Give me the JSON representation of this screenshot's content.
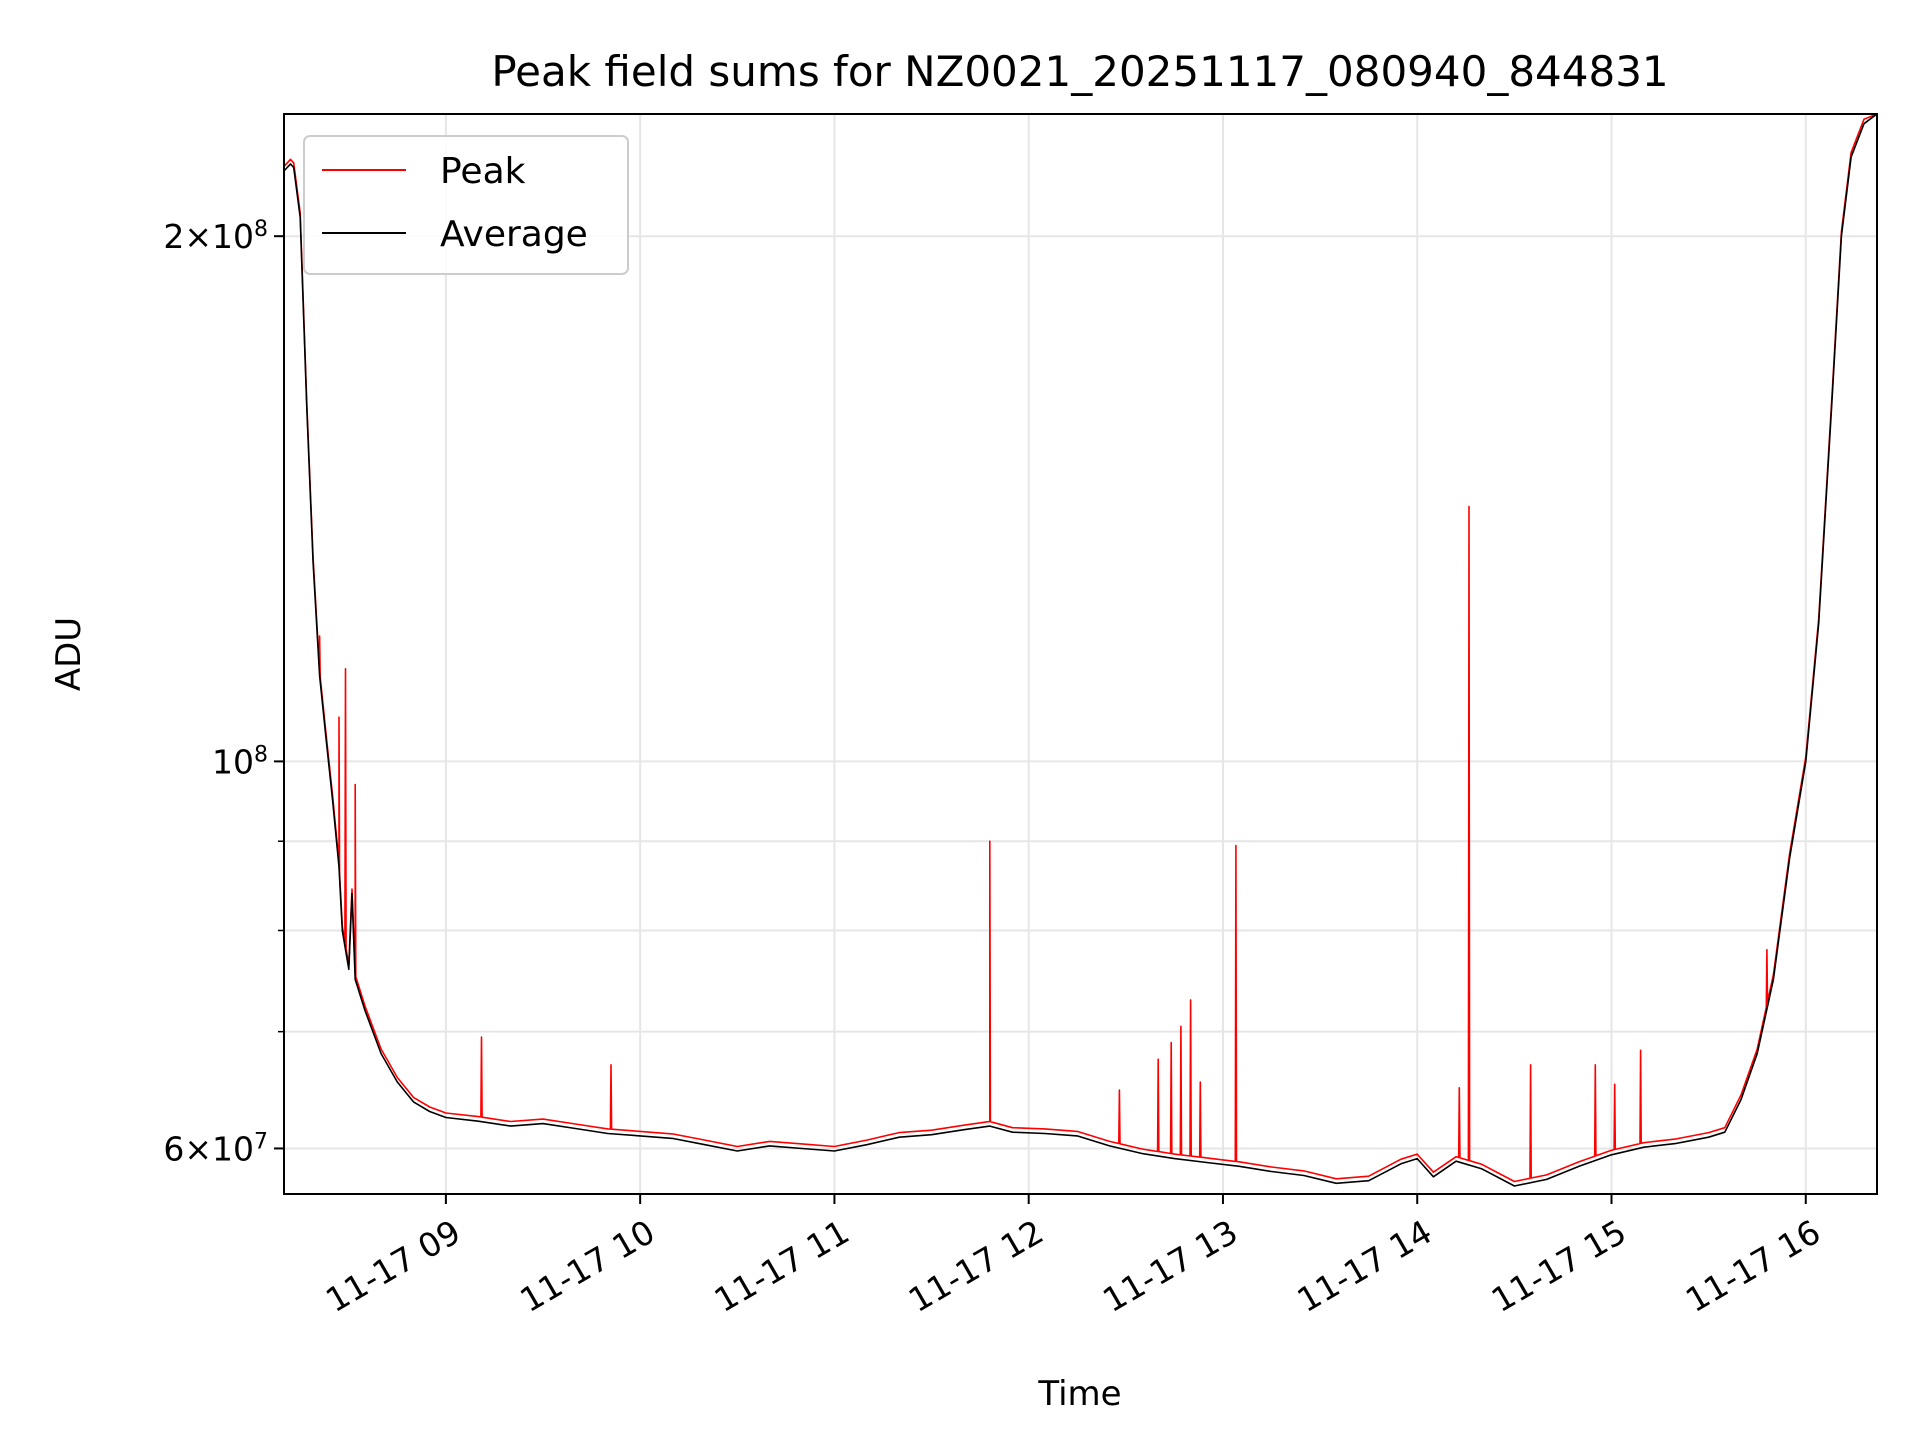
{
  "chart_data": {
    "type": "line",
    "title": "Peak field sums for NZ0021_20251117_080940_844831",
    "xlabel": "Time",
    "ylabel": "ADU",
    "y_scale": "log",
    "ylim": [
      56500000,
      235000000
    ],
    "xlim": [
      "2025-11-17 08:10",
      "2025-11-17 16:22"
    ],
    "grid": true,
    "legend_position": "top-left",
    "x_ticks": [
      {
        "value": "2025-11-17 09:00",
        "label": "11-17 09"
      },
      {
        "value": "2025-11-17 10:00",
        "label": "11-17 10"
      },
      {
        "value": "2025-11-17 11:00",
        "label": "11-17 11"
      },
      {
        "value": "2025-11-17 12:00",
        "label": "11-17 12"
      },
      {
        "value": "2025-11-17 13:00",
        "label": "11-17 13"
      },
      {
        "value": "2025-11-17 14:00",
        "label": "11-17 14"
      },
      {
        "value": "2025-11-17 15:00",
        "label": "11-17 15"
      },
      {
        "value": "2025-11-17 16:00",
        "label": "11-17 16"
      }
    ],
    "y_ticks_major": [
      {
        "value": 60000000,
        "label_base": "6×10",
        "label_exp": "7"
      },
      {
        "value": 100000000,
        "label_base": "10",
        "label_exp": "8"
      },
      {
        "value": 200000000,
        "label_base": "2×10",
        "label_exp": "8"
      }
    ],
    "y_ticks_minor": [
      70000000,
      80000000,
      90000000
    ],
    "series": [
      {
        "name": "Average",
        "color": "#000000",
        "points": [
          [
            "2025-11-17 08:10",
            218000000
          ],
          [
            "2025-11-17 08:12",
            220000000
          ],
          [
            "2025-11-17 08:13",
            219000000
          ],
          [
            "2025-11-17 08:15",
            205000000
          ],
          [
            "2025-11-17 08:17",
            160000000
          ],
          [
            "2025-11-17 08:19",
            130000000
          ],
          [
            "2025-11-17 08:21",
            112000000
          ],
          [
            "2025-11-17 08:23",
            103000000
          ],
          [
            "2025-11-17 08:25",
            95000000
          ],
          [
            "2025-11-17 08:27",
            87000000
          ],
          [
            "2025-11-17 08:28",
            80000000
          ],
          [
            "2025-11-17 08:30",
            76000000
          ],
          [
            "2025-11-17 08:31",
            84000000
          ],
          [
            "2025-11-17 08:32",
            75000000
          ],
          [
            "2025-11-17 08:35",
            72000000
          ],
          [
            "2025-11-17 08:40",
            68000000
          ],
          [
            "2025-11-17 08:45",
            65500000
          ],
          [
            "2025-11-17 08:50",
            63800000
          ],
          [
            "2025-11-17 08:55",
            63000000
          ],
          [
            "2025-11-17 09:00",
            62500000
          ],
          [
            "2025-11-17 09:10",
            62200000
          ],
          [
            "2025-11-17 09:20",
            61800000
          ],
          [
            "2025-11-17 09:30",
            62000000
          ],
          [
            "2025-11-17 09:40",
            61600000
          ],
          [
            "2025-11-17 09:50",
            61200000
          ],
          [
            "2025-11-17 10:00",
            61000000
          ],
          [
            "2025-11-17 10:10",
            60800000
          ],
          [
            "2025-11-17 10:20",
            60300000
          ],
          [
            "2025-11-17 10:30",
            59800000
          ],
          [
            "2025-11-17 10:40",
            60200000
          ],
          [
            "2025-11-17 10:50",
            60000000
          ],
          [
            "2025-11-17 11:00",
            59800000
          ],
          [
            "2025-11-17 11:10",
            60300000
          ],
          [
            "2025-11-17 11:20",
            60900000
          ],
          [
            "2025-11-17 11:30",
            61100000
          ],
          [
            "2025-11-17 11:40",
            61500000
          ],
          [
            "2025-11-17 11:48",
            61800000
          ],
          [
            "2025-11-17 11:55",
            61300000
          ],
          [
            "2025-11-17 12:05",
            61200000
          ],
          [
            "2025-11-17 12:15",
            61000000
          ],
          [
            "2025-11-17 12:25",
            60200000
          ],
          [
            "2025-11-17 12:35",
            59600000
          ],
          [
            "2025-11-17 12:45",
            59200000
          ],
          [
            "2025-11-17 12:55",
            58900000
          ],
          [
            "2025-11-17 13:05",
            58600000
          ],
          [
            "2025-11-17 13:15",
            58200000
          ],
          [
            "2025-11-17 13:25",
            57900000
          ],
          [
            "2025-11-17 13:35",
            57300000
          ],
          [
            "2025-11-17 13:45",
            57500000
          ],
          [
            "2025-11-17 13:55",
            58800000
          ],
          [
            "2025-11-17 14:00",
            59200000
          ],
          [
            "2025-11-17 14:05",
            57800000
          ],
          [
            "2025-11-17 14:12",
            59000000
          ],
          [
            "2025-11-17 14:20",
            58400000
          ],
          [
            "2025-11-17 14:30",
            57100000
          ],
          [
            "2025-11-17 14:40",
            57600000
          ],
          [
            "2025-11-17 14:50",
            58600000
          ],
          [
            "2025-11-17 15:00",
            59500000
          ],
          [
            "2025-11-17 15:10",
            60100000
          ],
          [
            "2025-11-17 15:20",
            60400000
          ],
          [
            "2025-11-17 15:30",
            60900000
          ],
          [
            "2025-11-17 15:35",
            61300000
          ],
          [
            "2025-11-17 15:40",
            64000000
          ],
          [
            "2025-11-17 15:45",
            68000000
          ],
          [
            "2025-11-17 15:50",
            75000000
          ],
          [
            "2025-11-17 15:55",
            88000000
          ],
          [
            "2025-11-17 16:00",
            100000000
          ],
          [
            "2025-11-17 16:04",
            120000000
          ],
          [
            "2025-11-17 16:08",
            160000000
          ],
          [
            "2025-11-17 16:11",
            200000000
          ],
          [
            "2025-11-17 16:14",
            222000000
          ],
          [
            "2025-11-17 16:18",
            232000000
          ],
          [
            "2025-11-17 16:22",
            235000000
          ]
        ]
      },
      {
        "name": "Peak",
        "color": "#ff0000",
        "spikes": [
          [
            "2025-11-17 08:21",
            118000000
          ],
          [
            "2025-11-17 08:27",
            106000000
          ],
          [
            "2025-11-17 08:29",
            113000000
          ],
          [
            "2025-11-17 08:32",
            97000000
          ],
          [
            "2025-11-17 09:11",
            69500000
          ],
          [
            "2025-11-17 09:51",
            67000000
          ],
          [
            "2025-11-17 11:48",
            90000000
          ],
          [
            "2025-11-17 12:28",
            64800000
          ],
          [
            "2025-11-17 12:40",
            67500000
          ],
          [
            "2025-11-17 12:44",
            69000000
          ],
          [
            "2025-11-17 12:47",
            70500000
          ],
          [
            "2025-11-17 12:50",
            73000000
          ],
          [
            "2025-11-17 12:53",
            65500000
          ],
          [
            "2025-11-17 13:04",
            89500000
          ],
          [
            "2025-11-17 14:13",
            65000000
          ],
          [
            "2025-11-17 14:16",
            140000000
          ],
          [
            "2025-11-17 14:35",
            67000000
          ],
          [
            "2025-11-17 14:55",
            67000000
          ],
          [
            "2025-11-17 15:01",
            65300000
          ],
          [
            "2025-11-17 15:09",
            68300000
          ],
          [
            "2025-11-17 15:48",
            78000000
          ]
        ]
      }
    ]
  }
}
